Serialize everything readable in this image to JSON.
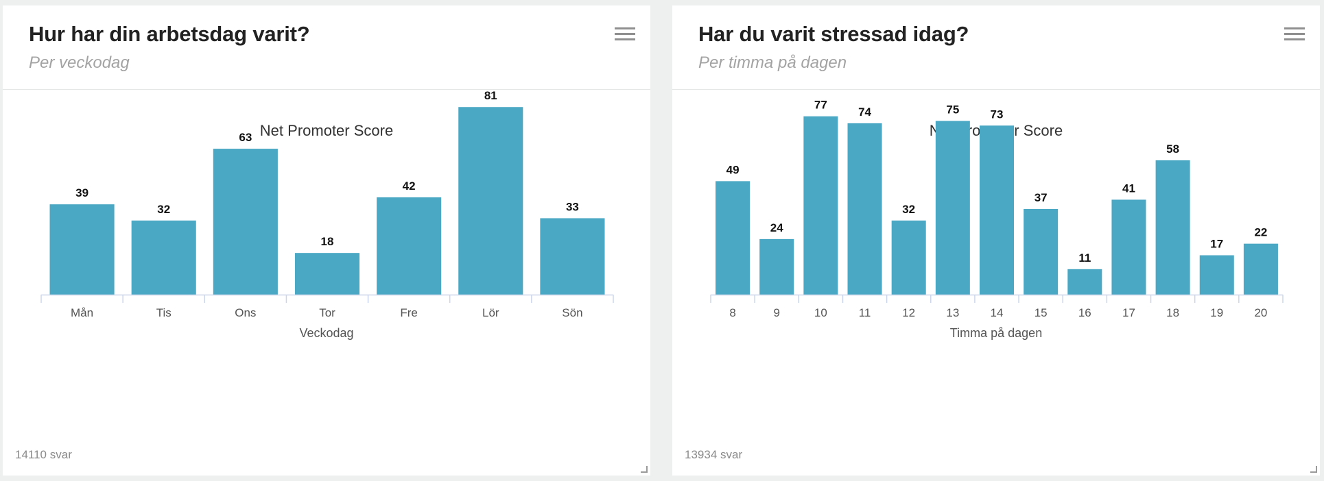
{
  "panels": [
    {
      "title": "Hur har din arbetsdag varit?",
      "subtitle": "Per veckodag",
      "footer": "14110 svar",
      "menu_icon": "hamburger-menu-icon"
    },
    {
      "title": "Har du varit stressad idag?",
      "subtitle": "Per timma på dagen",
      "footer": "13934 svar",
      "menu_icon": "hamburger-menu-icon"
    }
  ],
  "colors": {
    "bar": "#4ba8c4",
    "axis": "#ccd6eb",
    "background": "#ffffff",
    "page": "#eef0f0"
  },
  "chart_data": [
    {
      "type": "bar",
      "title": "Net Promoter Score",
      "xlabel": "Veckodag",
      "ylabel": "",
      "categories": [
        "Mån",
        "Tis",
        "Ons",
        "Tor",
        "Fre",
        "Lör",
        "Sön"
      ],
      "values": [
        39,
        32,
        63,
        18,
        42,
        81,
        33
      ],
      "data_labels": true,
      "grid": false,
      "legend": false,
      "ylim": [
        0,
        90
      ]
    },
    {
      "type": "bar",
      "title": "Net Promoter Score",
      "xlabel": "Timma på dagen",
      "ylabel": "",
      "categories": [
        "8",
        "9",
        "10",
        "11",
        "12",
        "13",
        "14",
        "15",
        "16",
        "17",
        "18",
        "19",
        "20"
      ],
      "values": [
        49,
        24,
        77,
        74,
        32,
        75,
        73,
        37,
        11,
        41,
        58,
        17,
        22
      ],
      "data_labels": true,
      "grid": false,
      "legend": false,
      "ylim": [
        0,
        90
      ]
    }
  ]
}
